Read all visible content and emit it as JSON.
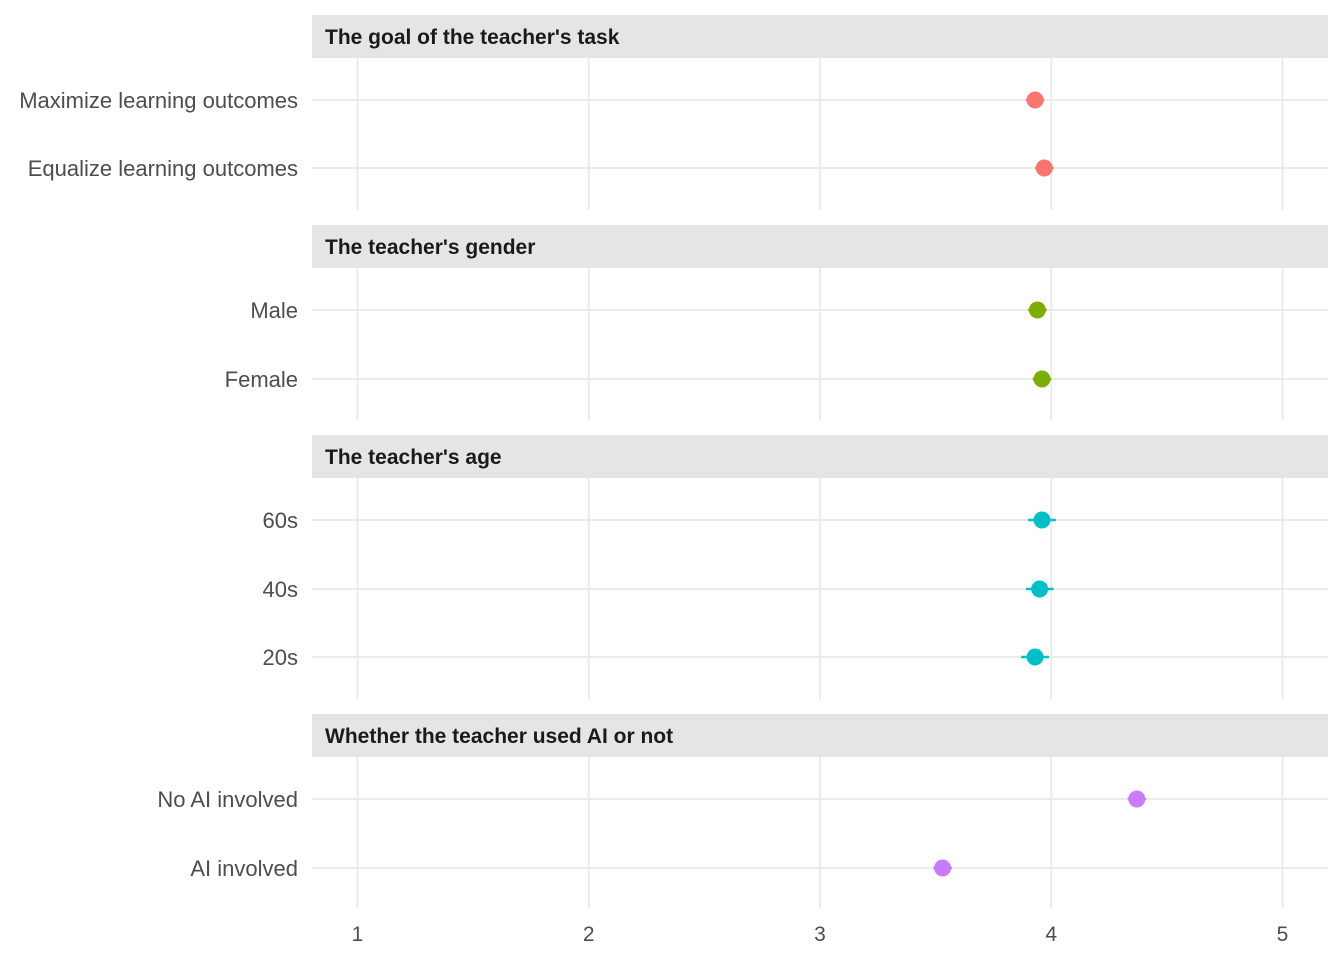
{
  "chart_data": {
    "type": "scatter",
    "orientation": "horizontal",
    "title": "",
    "xlabel": "",
    "ylabel": "",
    "xlim": [
      0.8,
      5.2
    ],
    "x_ticks": [
      1,
      2,
      3,
      4,
      5
    ],
    "grid": true,
    "legend": "none",
    "panels": [
      {
        "title": "The goal of the teacher's task",
        "color": "#F8766D",
        "categories": [
          "Maximize learning outcomes",
          "Equalize learning outcomes"
        ],
        "values": [
          3.93,
          3.97
        ],
        "ci_low": [
          3.89,
          3.93
        ],
        "ci_high": [
          3.97,
          4.01
        ]
      },
      {
        "title": "The teacher's gender",
        "color": "#7CAE00",
        "categories": [
          "Male",
          "Female"
        ],
        "values": [
          3.94,
          3.96
        ],
        "ci_low": [
          3.9,
          3.92
        ],
        "ci_high": [
          3.98,
          4.0
        ]
      },
      {
        "title": "The teacher's age",
        "color": "#00BFC4",
        "categories": [
          "60s",
          "40s",
          "20s"
        ],
        "values": [
          3.96,
          3.95,
          3.93
        ],
        "ci_low": [
          3.9,
          3.89,
          3.87
        ],
        "ci_high": [
          4.02,
          4.01,
          3.99
        ]
      },
      {
        "title": "Whether the teacher used AI or not",
        "color": "#C77CFF",
        "categories": [
          "No AI involved",
          "AI involved"
        ],
        "values": [
          4.37,
          3.53
        ],
        "ci_low": [
          4.33,
          3.49
        ],
        "ci_high": [
          4.41,
          3.57
        ]
      }
    ]
  }
}
